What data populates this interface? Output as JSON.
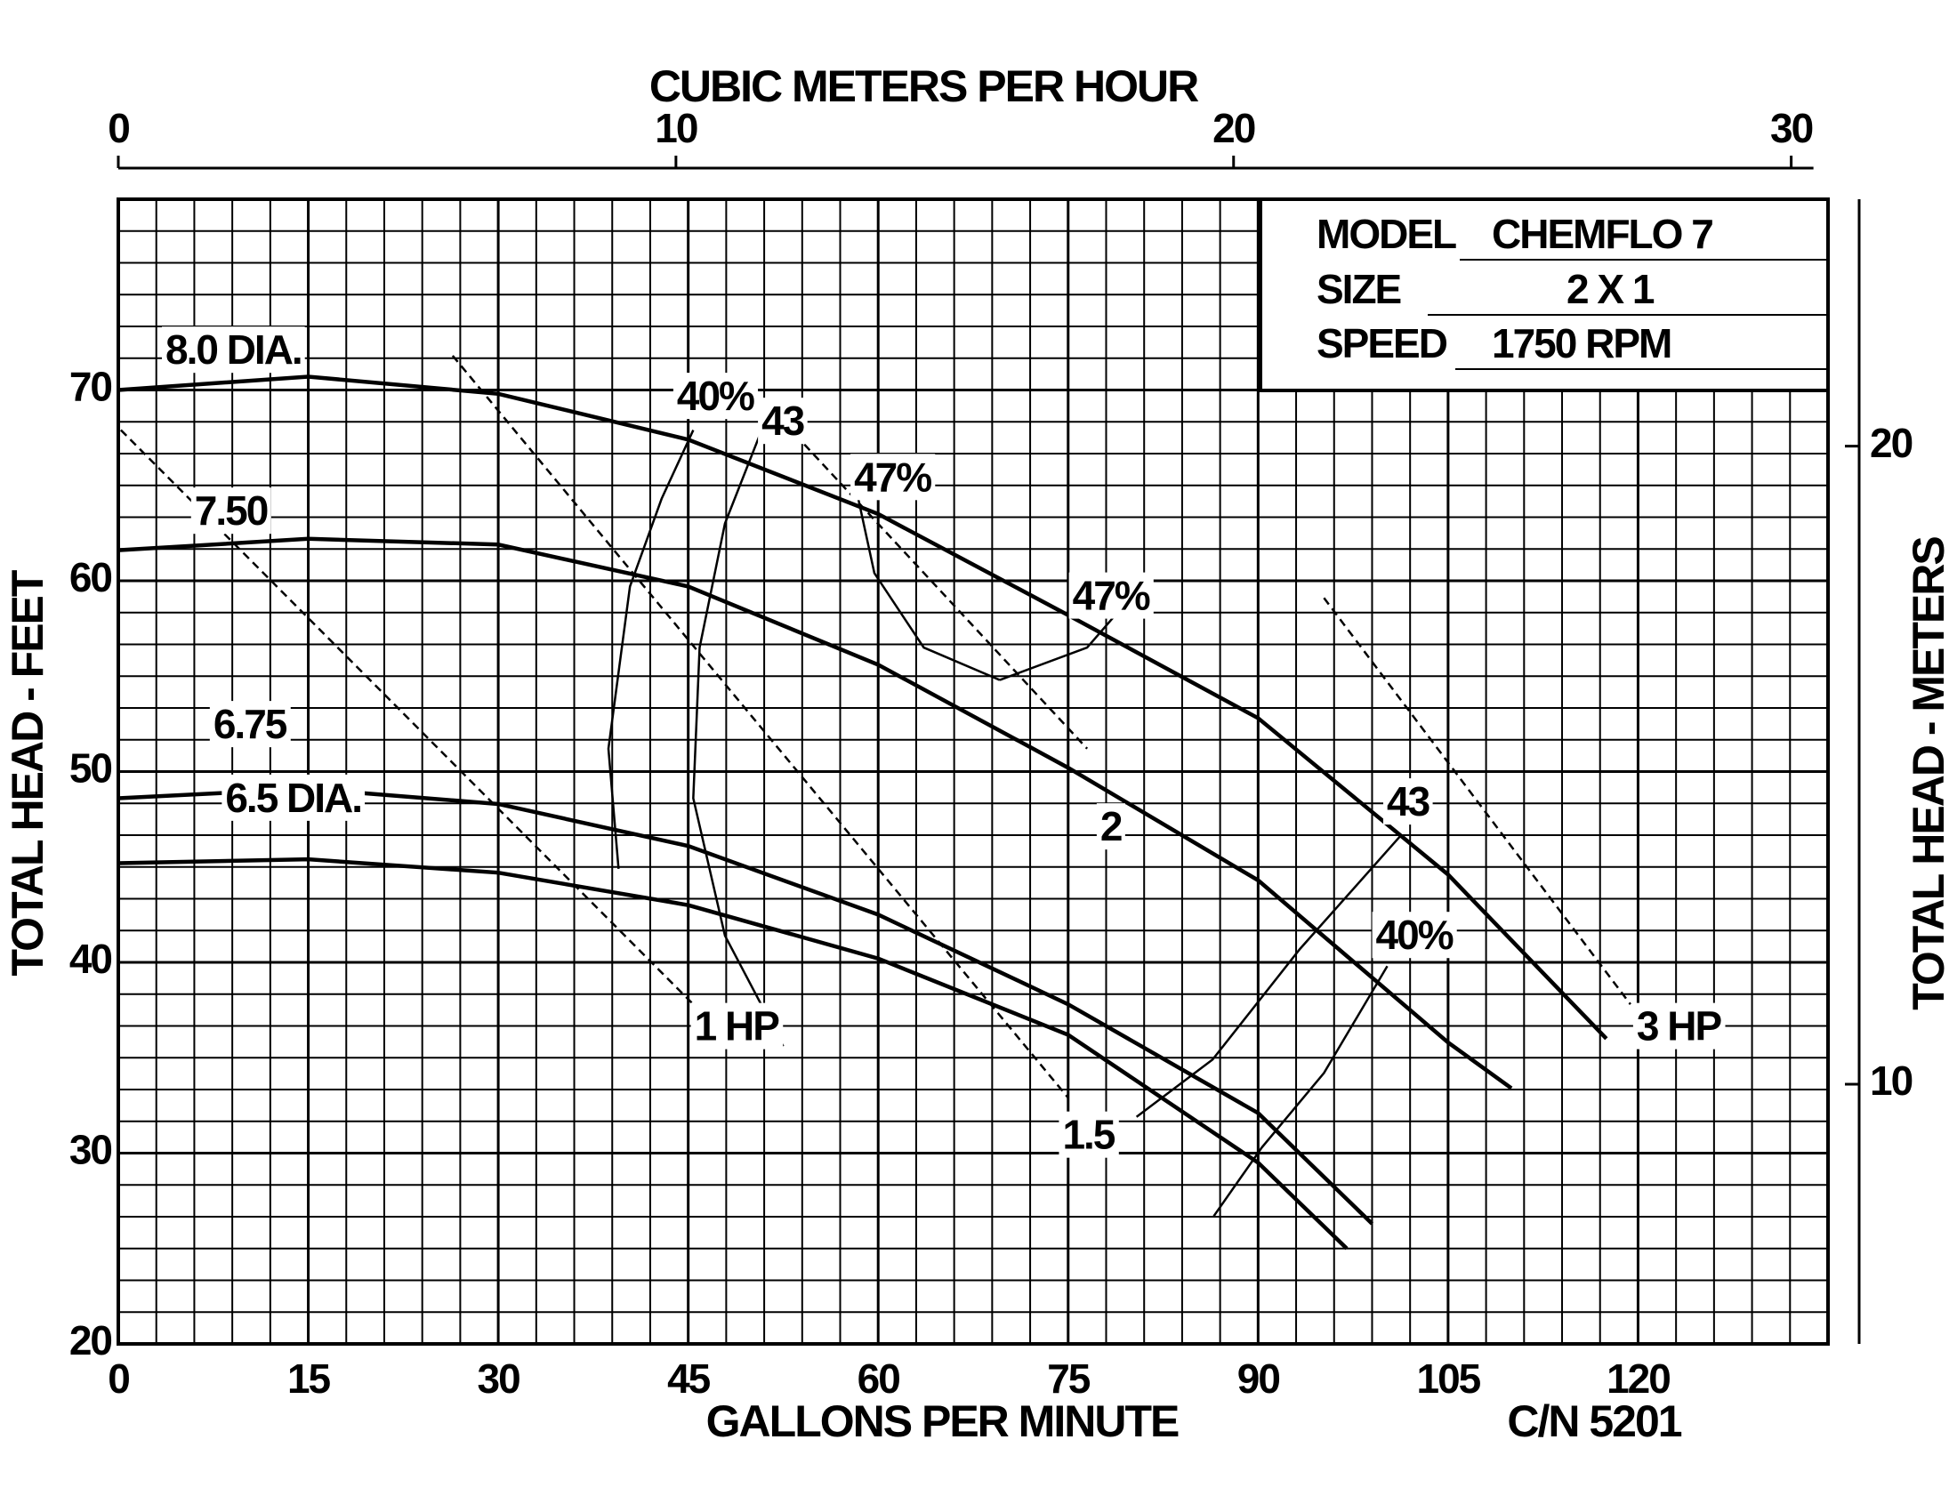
{
  "chart_data": {
    "type": "line",
    "x_label": "GALLONS PER MINUTE",
    "y_label": "TOTAL HEAD - FEET",
    "x2_label": "CUBIC METERS PER HOUR",
    "y2_label": "TOTAL HEAD - METERS",
    "footer": "C/N 5201",
    "info_box": [
      {
        "label": "MODEL",
        "value": "CHEMFLO 7"
      },
      {
        "label": "SIZE",
        "value": "2 X 1"
      },
      {
        "label": "SPEED",
        "value": "1750 RPM"
      }
    ],
    "xlim": [
      0,
      135
    ],
    "xticks": [
      0,
      15,
      30,
      45,
      60,
      75,
      90,
      105,
      120
    ],
    "ylim": [
      20,
      80
    ],
    "yticks": [
      20,
      30,
      40,
      50,
      60,
      70
    ],
    "x2lim": [
      0,
      30.66
    ],
    "x2ticks": [
      0,
      10,
      20,
      30
    ],
    "y2lim": [
      5.93,
      23.87
    ],
    "y2ticks": [
      10,
      20
    ],
    "grid": true,
    "color": "#000000",
    "series": [
      {
        "name": "8.0 DIA.",
        "style": "solid",
        "x": [
          0,
          15,
          30,
          45,
          60,
          75,
          90,
          105,
          117.5
        ],
        "values": [
          70,
          70.7,
          69.8,
          67.4,
          63.5,
          58.2,
          52.8,
          44.6,
          36
        ]
      },
      {
        "name": "7.50",
        "style": "solid",
        "x": [
          0,
          15,
          30,
          45,
          60,
          75,
          90,
          105,
          110
        ],
        "values": [
          61.6,
          62.2,
          61.9,
          59.7,
          55.6,
          50.2,
          44.3,
          35.8,
          33.4
        ]
      },
      {
        "name": "6.75",
        "style": "solid",
        "x": [
          0,
          15,
          30,
          45,
          60,
          75,
          90,
          99
        ],
        "values": [
          48.6,
          49.1,
          48.3,
          46.1,
          42.5,
          37.8,
          32.1,
          26.3
        ]
      },
      {
        "name": "6.5 DIA.",
        "style": "solid",
        "x": [
          0,
          15,
          30,
          45,
          60,
          75,
          90,
          97
        ],
        "values": [
          45.2,
          45.4,
          44.7,
          43,
          40.2,
          36.2,
          29.5,
          25
        ]
      },
      {
        "name": "40%",
        "style": "thin",
        "x": [
          39.5,
          38.7,
          40.4,
          42.9,
          45.4
        ],
        "values": [
          44.9,
          51.2,
          59.7,
          64.3,
          67.9
        ]
      },
      {
        "name": "43",
        "style": "thin",
        "x": [
          52.5,
          47.9,
          45.4,
          45.9,
          47.9,
          50.8
        ],
        "values": [
          35.6,
          41.4,
          48.6,
          56.5,
          63,
          67.9
        ]
      },
      {
        "name": "47%",
        "style": "thin",
        "x": [
          58.2,
          59.7,
          63.6,
          69.6
        ],
        "values": [
          65,
          60.4,
          56.5,
          54.8
        ]
      },
      {
        "name": "47%",
        "style": "thin",
        "x": [
          69.6,
          76.5,
          79.9
        ],
        "values": [
          54.8,
          56.5,
          59.1
        ]
      },
      {
        "name": "43",
        "style": "thin",
        "x": [
          80.4,
          86.4,
          93.3,
          101.2
        ],
        "values": [
          31.9,
          34.9,
          40.7,
          46.6
        ]
      },
      {
        "name": "40%",
        "style": "thin",
        "x": [
          86.5,
          90.3,
          95.2,
          100.2
        ],
        "values": [
          26.7,
          30.3,
          34.2,
          39.8
        ]
      },
      {
        "name": "1 HP",
        "style": "dashed",
        "x": [
          0.2,
          45.4
        ],
        "values": [
          67.9,
          37.8
        ]
      },
      {
        "name": "1.5",
        "style": "dashed",
        "x": [
          26.4,
          75
        ],
        "values": [
          71.8,
          32.9
        ]
      },
      {
        "name": "2",
        "style": "dashed",
        "x": [
          51.3,
          76.5
        ],
        "values": [
          69.2,
          51.2
        ]
      },
      {
        "name": "3 HP",
        "style": "dashed",
        "x": [
          95.2,
          119.4
        ],
        "values": [
          59.1,
          37.8
        ]
      }
    ]
  }
}
